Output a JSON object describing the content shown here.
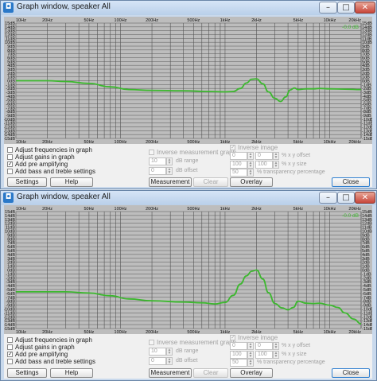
{
  "colors": {
    "curve": "#3cb82e",
    "plot_bg": "#bdbdbd",
    "grid": "#555555",
    "panel": "#f0f0f0"
  },
  "windows": [
    {
      "title": "Graph window, speaker All",
      "level": "-0.0 dB",
      "icon": "app-icon",
      "controls": {
        "adjust_freq": "Adjust frequencies in graph",
        "adjust_gains": "Adjust gains in graph",
        "add_pre": "Add pre amplifying",
        "add_bass": "Add bass and treble settings",
        "inverse_meas": "Inverse measurement graph",
        "db_range_value": "10",
        "db_range_label": "dB range",
        "db_offset_value": "0",
        "db_offset_label": "dB offset",
        "inverse_image": "Inverse image",
        "x_offset_value": "0",
        "y_offset_value": "0",
        "xy_offset_label": "% x y offset",
        "x_size_value": "100",
        "y_size_value": "100",
        "xy_size_label": "% x y size",
        "transparency_value": "50",
        "transparency_label": "% transparency percentage"
      },
      "buttons": {
        "settings": "Settings",
        "help": "Help",
        "measurement": "Measurement",
        "clear": "Clear",
        "overlay": "Overlay",
        "close": "Close"
      },
      "chart_data": {
        "type": "line",
        "xscale": "log",
        "xlim": [
          10,
          20000
        ],
        "ylim": [
          -15,
          15
        ],
        "grid": true,
        "x_ticks": [
          "10Hz",
          "20Hz",
          "50Hz",
          "100Hz",
          "200Hz",
          "500Hz",
          "1kHz",
          "2kHz",
          "5kHz",
          "10kHz",
          "20kHz"
        ],
        "y_ticks": [
          "15dB",
          "14dB",
          "13dB",
          "12dB",
          "11dB",
          "10dB",
          "9dB",
          "8dB",
          "7dB",
          "6dB",
          "5dB",
          "4dB",
          "3dB",
          "2dB",
          "1dB",
          "0dB",
          "-1dB",
          "-2dB",
          "-3dB",
          "-4dB",
          "-5dB",
          "-6dB",
          "-7dB",
          "-8dB",
          "-9dB",
          "-10dB",
          "-11dB",
          "-12dB",
          "-13dB",
          "-14dB",
          "-15dB"
        ],
        "series": [
          {
            "x": [
              10,
              20,
              30,
              50,
              80,
              120,
              200,
              400,
              700,
              1000,
              1200,
              1400,
              1600,
              1800,
              2000,
              2300,
              2600,
              3000,
              3400,
              3800,
              4200,
              4600,
              5000,
              6000,
              7000,
              8000,
              10000,
              14000,
              20000
            ],
            "y": [
              0.0,
              0.0,
              -0.2,
              -0.7,
              -1.6,
              -2.3,
              -2.5,
              -2.6,
              -2.8,
              -2.9,
              -2.8,
              -2.0,
              -0.6,
              0.4,
              0.5,
              -0.8,
              -2.9,
              -4.6,
              -5.4,
              -4.2,
              -2.4,
              -1.9,
              -2.3,
              -2.1,
              -2.1,
              -2.0,
              -2.1,
              -2.2,
              -2.3
            ]
          }
        ]
      }
    },
    {
      "title": "Graph window, speaker All",
      "level": "-0.0 dB",
      "icon": "app-icon",
      "controls": {
        "adjust_freq": "Adjust frequencies in graph",
        "adjust_gains": "Adjust gains in graph",
        "add_pre": "Add pre amplifying",
        "add_bass": "Add bass and treble settings",
        "inverse_meas": "Inverse measurement graph",
        "db_range_value": "10",
        "db_range_label": "dB range",
        "db_offset_value": "0",
        "db_offset_label": "dB offset",
        "inverse_image": "Inverse image",
        "x_offset_value": "0",
        "y_offset_value": "0",
        "xy_offset_label": "% x y offset",
        "x_size_value": "100",
        "y_size_value": "100",
        "xy_size_label": "% x y size",
        "transparency_value": "50",
        "transparency_label": "% transparency percentage"
      },
      "buttons": {
        "settings": "Settings",
        "help": "Help",
        "measurement": "Measurement",
        "clear": "Clear",
        "overlay": "Overlay",
        "close": "Close"
      },
      "chart_data": {
        "type": "line",
        "xscale": "log",
        "xlim": [
          10,
          20000
        ],
        "ylim": [
          -15,
          15
        ],
        "grid": true,
        "x_ticks": [
          "10Hz",
          "20Hz",
          "50Hz",
          "100Hz",
          "200Hz",
          "500Hz",
          "1kHz",
          "2kHz",
          "5kHz",
          "10kHz",
          "20kHz"
        ],
        "y_ticks": [
          "15dB",
          "14dB",
          "13dB",
          "12dB",
          "11dB",
          "10dB",
          "9dB",
          "8dB",
          "7dB",
          "6dB",
          "5dB",
          "4dB",
          "3dB",
          "2dB",
          "1dB",
          "0dB",
          "-1dB",
          "-2dB",
          "-3dB",
          "-4dB",
          "-5dB",
          "-6dB",
          "-7dB",
          "-8dB",
          "-9dB",
          "-10dB",
          "-11dB",
          "-12dB",
          "-13dB",
          "-14dB",
          "-15dB"
        ],
        "series": [
          {
            "x": [
              10,
              20,
              30,
              50,
              80,
              120,
              200,
              400,
              600,
              800,
              1000,
              1200,
              1400,
              1600,
              1800,
              2000,
              2300,
              2600,
              3000,
              3500,
              4000,
              4500,
              5000,
              6000,
              7000,
              8000,
              10000,
              12000,
              14000,
              17000,
              20000
            ],
            "y": [
              -5.6,
              -5.6,
              -5.6,
              -5.9,
              -6.6,
              -7.4,
              -7.9,
              -8.2,
              -8.4,
              -8.7,
              -8.3,
              -6.5,
              -3.6,
              -1.5,
              -0.3,
              0.0,
              -2.3,
              -5.8,
              -8.6,
              -9.7,
              -10.2,
              -9.6,
              -8.0,
              -8.5,
              -8.6,
              -8.5,
              -9.0,
              -9.6,
              -11.0,
              -12.6,
              -13.8
            ]
          }
        ]
      }
    }
  ]
}
